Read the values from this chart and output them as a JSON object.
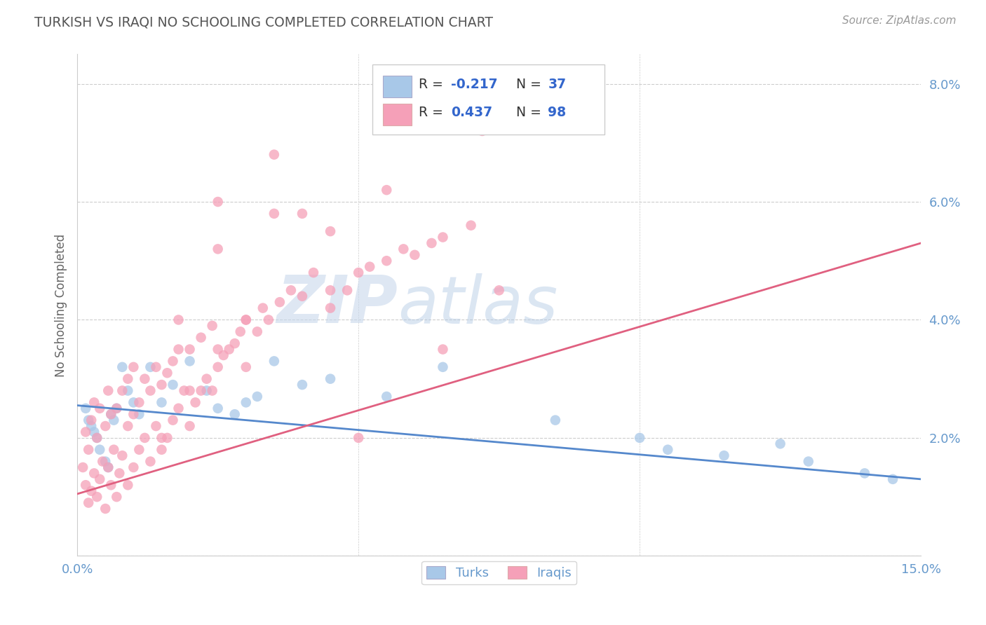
{
  "title": "TURKISH VS IRAQI NO SCHOOLING COMPLETED CORRELATION CHART",
  "source_text": "Source: ZipAtlas.com",
  "ylabel": "No Schooling Completed",
  "xmin": 0.0,
  "xmax": 15.0,
  "ymin": 0.0,
  "ymax": 8.5,
  "turks_color": "#a8c8e8",
  "iraqis_color": "#f5a0b8",
  "turks_line_color": "#5588cc",
  "iraqis_line_color": "#e06080",
  "turks_trend_start_y": 2.55,
  "turks_trend_end_y": 1.3,
  "iraqis_trend_start_y": 1.05,
  "iraqis_trend_end_y": 5.3,
  "watermark_zip": "ZIP",
  "watermark_atlas": "atlas",
  "bg_color": "#ffffff",
  "grid_color": "#cccccc",
  "title_color": "#555555",
  "axis_label_color": "#6699cc"
}
